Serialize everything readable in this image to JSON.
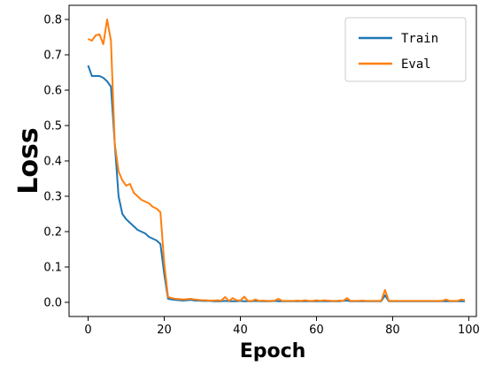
{
  "chart_data": {
    "type": "line",
    "xlabel": "Epoch",
    "ylabel": "Loss",
    "xlim": [
      -5,
      102
    ],
    "ylim": [
      -0.04,
      0.84
    ],
    "xticks": [
      0,
      20,
      40,
      60,
      80,
      100
    ],
    "yticks": [
      0.0,
      0.1,
      0.2,
      0.3,
      0.4,
      0.5,
      0.6,
      0.7,
      0.8
    ],
    "grid": false,
    "legend_position": "top-right",
    "series": [
      {
        "name": "Train",
        "color": "#1f77b4",
        "x": [
          0,
          1,
          2,
          3,
          4,
          5,
          6,
          7,
          8,
          9,
          10,
          11,
          12,
          13,
          14,
          15,
          16,
          17,
          18,
          19,
          20,
          21,
          22,
          23,
          24,
          25,
          26,
          27,
          28,
          29,
          30,
          31,
          32,
          33,
          34,
          35,
          36,
          37,
          38,
          39,
          40,
          41,
          42,
          43,
          44,
          45,
          46,
          47,
          48,
          49,
          50,
          51,
          52,
          53,
          54,
          55,
          56,
          57,
          58,
          59,
          60,
          61,
          62,
          63,
          64,
          65,
          66,
          67,
          68,
          69,
          70,
          71,
          72,
          73,
          74,
          75,
          76,
          77,
          78,
          79,
          80,
          81,
          82,
          83,
          84,
          85,
          86,
          87,
          88,
          89,
          90,
          91,
          92,
          93,
          94,
          95,
          96,
          97,
          98,
          99
        ],
        "y": [
          0.67,
          0.64,
          0.64,
          0.64,
          0.635,
          0.625,
          0.61,
          0.45,
          0.3,
          0.25,
          0.235,
          0.225,
          0.215,
          0.205,
          0.2,
          0.195,
          0.185,
          0.18,
          0.175,
          0.165,
          0.08,
          0.01,
          0.008,
          0.007,
          0.006,
          0.005,
          0.006,
          0.007,
          0.005,
          0.005,
          0.004,
          0.004,
          0.004,
          0.003,
          0.003,
          0.003,
          0.004,
          0.003,
          0.003,
          0.003,
          0.004,
          0.003,
          0.003,
          0.003,
          0.004,
          0.003,
          0.003,
          0.003,
          0.003,
          0.004,
          0.003,
          0.003,
          0.003,
          0.003,
          0.003,
          0.003,
          0.003,
          0.003,
          0.003,
          0.003,
          0.003,
          0.003,
          0.003,
          0.003,
          0.003,
          0.003,
          0.003,
          0.004,
          0.005,
          0.003,
          0.003,
          0.003,
          0.003,
          0.003,
          0.003,
          0.003,
          0.003,
          0.003,
          0.02,
          0.003,
          0.003,
          0.003,
          0.003,
          0.003,
          0.003,
          0.003,
          0.003,
          0.003,
          0.003,
          0.003,
          0.003,
          0.003,
          0.003,
          0.003,
          0.003,
          0.003,
          0.003,
          0.003,
          0.003,
          0.003
        ]
      },
      {
        "name": "Eval",
        "color": "#ff7f0e",
        "x": [
          0,
          1,
          2,
          3,
          4,
          5,
          6,
          7,
          8,
          9,
          10,
          11,
          12,
          13,
          14,
          15,
          16,
          17,
          18,
          19,
          20,
          21,
          22,
          23,
          24,
          25,
          26,
          27,
          28,
          29,
          30,
          31,
          32,
          33,
          34,
          35,
          36,
          37,
          38,
          39,
          40,
          41,
          42,
          43,
          44,
          45,
          46,
          47,
          48,
          49,
          50,
          51,
          52,
          53,
          54,
          55,
          56,
          57,
          58,
          59,
          60,
          61,
          62,
          63,
          64,
          65,
          66,
          67,
          68,
          69,
          70,
          71,
          72,
          73,
          74,
          75,
          76,
          77,
          78,
          79,
          80,
          81,
          82,
          83,
          84,
          85,
          86,
          87,
          88,
          89,
          90,
          91,
          92,
          93,
          94,
          95,
          96,
          97,
          98,
          99
        ],
        "y": [
          0.745,
          0.74,
          0.755,
          0.758,
          0.73,
          0.8,
          0.74,
          0.45,
          0.37,
          0.345,
          0.33,
          0.335,
          0.31,
          0.3,
          0.29,
          0.285,
          0.28,
          0.27,
          0.265,
          0.255,
          0.11,
          0.015,
          0.012,
          0.01,
          0.009,
          0.008,
          0.009,
          0.01,
          0.008,
          0.007,
          0.006,
          0.006,
          0.005,
          0.005,
          0.006,
          0.005,
          0.015,
          0.004,
          0.012,
          0.006,
          0.005,
          0.016,
          0.004,
          0.004,
          0.008,
          0.004,
          0.005,
          0.004,
          0.004,
          0.005,
          0.01,
          0.004,
          0.004,
          0.004,
          0.004,
          0.005,
          0.004,
          0.006,
          0.004,
          0.004,
          0.006,
          0.004,
          0.006,
          0.005,
          0.004,
          0.004,
          0.005,
          0.004,
          0.012,
          0.004,
          0.004,
          0.004,
          0.005,
          0.004,
          0.004,
          0.004,
          0.004,
          0.004,
          0.035,
          0.004,
          0.004,
          0.004,
          0.004,
          0.004,
          0.004,
          0.004,
          0.004,
          0.004,
          0.004,
          0.004,
          0.004,
          0.004,
          0.004,
          0.004,
          0.008,
          0.004,
          0.004,
          0.004,
          0.008,
          0.006
        ]
      }
    ]
  }
}
